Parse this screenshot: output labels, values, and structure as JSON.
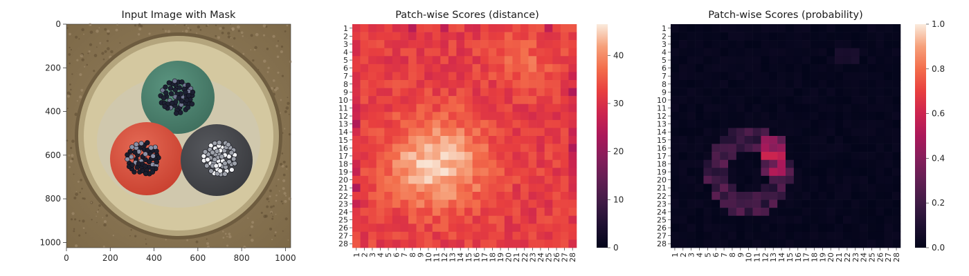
{
  "chart_data": [
    {
      "type": "image",
      "title": "Input Image with Mask",
      "xlim": [
        0,
        1024
      ],
      "ylim": [
        1024,
        0
      ],
      "xticks": [
        0,
        200,
        400,
        600,
        800,
        1000
      ],
      "yticks": [
        0,
        200,
        400,
        600,
        800,
        1000
      ],
      "colors": {
        "background": "#8f7a59",
        "disk": "#d2c59c",
        "rim": "#b5a67d",
        "green_conductor": "#4e8571",
        "red_conductor": "#d5523d",
        "gray_conductor": "#45474b",
        "strands": "#1a1c2c"
      }
    },
    {
      "type": "heatmap",
      "title": "Patch-wise Scores (distance)",
      "rows": [
        "1",
        "2",
        "3",
        "4",
        "5",
        "6",
        "7",
        "8",
        "9",
        "10",
        "11",
        "12",
        "13",
        "14",
        "15",
        "16",
        "17",
        "18",
        "19",
        "20",
        "21",
        "22",
        "23",
        "24",
        "25",
        "26",
        "27",
        "28"
      ],
      "cols": [
        "1",
        "2",
        "3",
        "4",
        "5",
        "6",
        "7",
        "8",
        "9",
        "10",
        "11",
        "12",
        "13",
        "14",
        "15",
        "16",
        "17",
        "18",
        "19",
        "20",
        "21",
        "22",
        "23",
        "24",
        "25",
        "26",
        "27",
        "28"
      ],
      "colormap": "rocket",
      "vmin": 0,
      "vmax": 46.5,
      "colorbar_ticks": [
        0,
        10,
        20,
        30,
        40
      ],
      "value_range_observed": [
        24,
        46
      ],
      "description_values": {
        "baseline": 32,
        "hot_region_center": [
          18,
          11
        ],
        "hot_region_peak": 46,
        "low_spots": [
          [
            1,
            8,
            25
          ],
          [
            1,
            12,
            26
          ],
          [
            1,
            25,
            26
          ],
          [
            9,
            28,
            26
          ],
          [
            13,
            1,
            26
          ],
          [
            21,
            1,
            26
          ],
          [
            16,
            28,
            27
          ]
        ]
      }
    },
    {
      "type": "heatmap",
      "title": "Patch-wise Scores (probability)",
      "rows": [
        "1",
        "2",
        "3",
        "4",
        "5",
        "6",
        "7",
        "8",
        "9",
        "10",
        "11",
        "12",
        "13",
        "14",
        "15",
        "16",
        "17",
        "18",
        "19",
        "20",
        "21",
        "22",
        "23",
        "24",
        "25",
        "26",
        "27",
        "28"
      ],
      "cols": [
        "1",
        "2",
        "3",
        "4",
        "5",
        "6",
        "7",
        "8",
        "9",
        "10",
        "11",
        "12",
        "13",
        "14",
        "15",
        "16",
        "17",
        "18",
        "19",
        "20",
        "21",
        "22",
        "23",
        "24",
        "25",
        "26",
        "27",
        "28"
      ],
      "colormap": "rocket",
      "vmin": 0,
      "vmax": 1,
      "colorbar_ticks": [
        "0.0",
        "0.2",
        "0.4",
        "0.6",
        "0.8",
        "1.0"
      ],
      "value_range_observed": [
        0,
        0.6
      ],
      "description_values": {
        "peak_cell": [
          17,
          13,
          0.6
        ],
        "ring_values": 0.25
      }
    }
  ]
}
